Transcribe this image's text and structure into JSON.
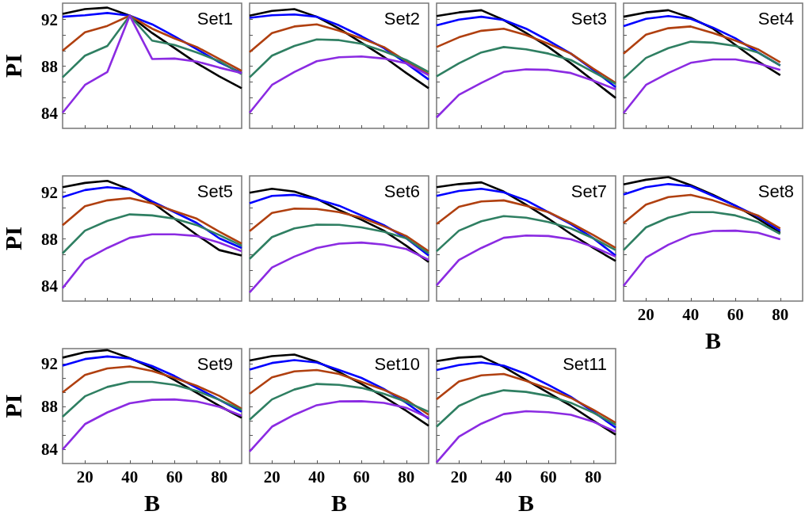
{
  "chart_data": [
    {
      "type": "line",
      "title": "Set1",
      "ylabel": "PI",
      "tick_labels": "y",
      "marker": "none",
      "x": [
        10,
        20,
        30,
        40,
        50,
        60,
        70,
        80,
        90
      ],
      "xlim": [
        10,
        90
      ],
      "xticks": [
        20,
        {
          "value": 30,
          "label": null
        },
        40,
        {
          "value": 50,
          "label": null
        },
        60,
        {
          "value": 70,
          "label": null
        },
        80
      ],
      "ylim": [
        82.7,
        93.4
      ],
      "yticks": [
        84,
        {
          "value": 85.33,
          "label": null
        },
        {
          "value": 86.67,
          "label": null
        },
        88,
        {
          "value": 89.33,
          "label": null
        },
        {
          "value": 90.67,
          "label": null
        },
        92
      ],
      "series": [
        {
          "color": "#000000",
          "values": [
            92.48,
            92.89,
            93.02,
            92.33,
            90.85,
            89.56,
            88.26,
            87.15,
            86.13
          ]
        },
        {
          "color": "#0000ff",
          "values": [
            92.24,
            92.37,
            92.56,
            92.33,
            91.59,
            90.57,
            89.46,
            88.35,
            87.43
          ]
        },
        {
          "color": "#b04010",
          "values": [
            89.33,
            90.91,
            91.46,
            92.33,
            91.22,
            90.39,
            89.65,
            88.63,
            87.61
          ]
        },
        {
          "color": "#2f7f62",
          "values": [
            87.06,
            88.91,
            89.74,
            92.33,
            90.2,
            89.83,
            89.19,
            88.44,
            87.33
          ]
        },
        {
          "color": "#8b2be2",
          "values": [
            84.04,
            86.41,
            87.52,
            92.33,
            88.63,
            88.67,
            88.41,
            87.89,
            87.43
          ]
        }
      ]
    },
    {
      "type": "line",
      "title": "Set2",
      "tick_labels": false,
      "marker": "none",
      "x": [
        10,
        20,
        30,
        40,
        50,
        60,
        70,
        80,
        90
      ],
      "xlim": [
        10,
        90
      ],
      "xticks": [
        20,
        {
          "value": 30,
          "label": null
        },
        40,
        {
          "value": 50,
          "label": null
        },
        60,
        {
          "value": 70,
          "label": null
        },
        80
      ],
      "ylim": [
        82.7,
        93.4
      ],
      "yticks": [
        84,
        {
          "value": 85.33,
          "label": null
        },
        {
          "value": 86.67,
          "label": null
        },
        88,
        {
          "value": 89.33,
          "label": null
        },
        {
          "value": 90.67,
          "label": null
        },
        92
      ],
      "series": [
        {
          "color": "#000000",
          "values": [
            92.33,
            92.74,
            92.89,
            92.24,
            91.22,
            90.02,
            88.81,
            87.43,
            86.13
          ]
        },
        {
          "color": "#0000ff",
          "values": [
            92.15,
            92.37,
            92.43,
            92.24,
            91.5,
            90.57,
            89.56,
            88.26,
            86.87
          ]
        },
        {
          "color": "#b04010",
          "values": [
            89.22,
            90.85,
            91.41,
            91.59,
            91.04,
            90.39,
            89.65,
            88.44,
            87.33
          ]
        },
        {
          "color": "#2f7f62",
          "values": [
            87.06,
            88.91,
            89.74,
            90.3,
            90.24,
            89.93,
            89.28,
            88.54,
            87.52
          ]
        },
        {
          "color": "#8b2be2",
          "values": [
            84.04,
            86.41,
            87.52,
            88.44,
            88.78,
            88.85,
            88.67,
            88.26,
            87.24
          ]
        }
      ]
    },
    {
      "type": "line",
      "title": "Set3",
      "tick_labels": false,
      "marker": "none",
      "x": [
        10,
        20,
        30,
        40,
        50,
        60,
        70,
        80,
        90
      ],
      "xlim": [
        10,
        90
      ],
      "xticks": [
        20,
        {
          "value": 30,
          "label": null
        },
        40,
        {
          "value": 50,
          "label": null
        },
        60,
        {
          "value": 70,
          "label": null
        },
        80
      ],
      "ylim": [
        82.7,
        93.4
      ],
      "yticks": [
        84,
        {
          "value": 85.33,
          "label": null
        },
        {
          "value": 86.67,
          "label": null
        },
        88,
        {
          "value": 89.33,
          "label": null
        },
        {
          "value": 90.67,
          "label": null
        },
        92
      ],
      "series": [
        {
          "color": "#000000",
          "values": [
            92.3,
            92.61,
            92.8,
            91.96,
            90.85,
            89.65,
            88.26,
            86.78,
            85.3
          ]
        },
        {
          "color": "#0000ff",
          "values": [
            91.5,
            92.0,
            92.24,
            91.96,
            91.22,
            90.2,
            89.09,
            87.7,
            86.22
          ]
        },
        {
          "color": "#b04010",
          "values": [
            89.65,
            90.48,
            91.04,
            91.22,
            90.67,
            89.93,
            89.09,
            87.8,
            86.59
          ]
        },
        {
          "color": "#2f7f62",
          "values": [
            87.15,
            88.26,
            89.19,
            89.65,
            89.46,
            89.09,
            88.54,
            87.52,
            86.5
          ]
        },
        {
          "color": "#8b2be2",
          "values": [
            83.63,
            85.57,
            86.59,
            87.52,
            87.74,
            87.7,
            87.43,
            86.78,
            86.04
          ]
        }
      ]
    },
    {
      "type": "line",
      "title": "Set4",
      "tick_labels": false,
      "marker": "none",
      "x": [
        10,
        20,
        30,
        40,
        50,
        60,
        70,
        80
      ],
      "xlim": [
        10,
        90
      ],
      "xticks": [
        20,
        {
          "value": 30,
          "label": null
        },
        40,
        {
          "value": 50,
          "label": null
        },
        60,
        {
          "value": 70,
          "label": null
        },
        80
      ],
      "ylim": [
        82.7,
        93.4
      ],
      "yticks": [
        84,
        {
          "value": 85.33,
          "label": null
        },
        {
          "value": 86.67,
          "label": null
        },
        88,
        {
          "value": 89.33,
          "label": null
        },
        {
          "value": 90.67,
          "label": null
        },
        92
      ],
      "series": [
        {
          "color": "#000000",
          "values": [
            92.24,
            92.61,
            92.8,
            92.15,
            91.22,
            89.83,
            88.44,
            87.24
          ]
        },
        {
          "color": "#0000ff",
          "values": [
            91.44,
            92.06,
            92.3,
            92.06,
            91.31,
            90.39,
            89.19,
            88.07
          ]
        },
        {
          "color": "#b04010",
          "values": [
            89.09,
            90.7,
            91.26,
            91.41,
            90.85,
            90.2,
            89.46,
            88.35
          ]
        },
        {
          "color": "#2f7f62",
          "values": [
            86.96,
            88.72,
            89.56,
            90.11,
            90.02,
            89.74,
            89.19,
            88.07
          ]
        },
        {
          "color": "#8b2be2",
          "values": [
            84.0,
            86.41,
            87.43,
            88.3,
            88.59,
            88.59,
            88.26,
            87.7
          ]
        }
      ]
    },
    {
      "type": "line",
      "title": "Set5",
      "ylabel": "PI",
      "tick_labels": "y",
      "marker": "none",
      "x": [
        10,
        20,
        30,
        40,
        50,
        60,
        70,
        80,
        90
      ],
      "xlim": [
        10,
        90
      ],
      "xticks": [
        20,
        {
          "value": 30,
          "label": null
        },
        40,
        {
          "value": 50,
          "label": null
        },
        60,
        {
          "value": 70,
          "label": null
        },
        80
      ],
      "ylim": [
        82.7,
        93.4
      ],
      "yticks": [
        84,
        {
          "value": 85.33,
          "label": null
        },
        {
          "value": 86.67,
          "label": null
        },
        88,
        {
          "value": 89.33,
          "label": null
        },
        {
          "value": 90.67,
          "label": null
        },
        92
      ],
      "series": [
        {
          "color": "#000000",
          "values": [
            92.43,
            92.8,
            92.98,
            92.24,
            91.13,
            89.74,
            88.35,
            87.06,
            86.59
          ]
        },
        {
          "color": "#0000ff",
          "values": [
            91.59,
            92.19,
            92.43,
            92.24,
            91.22,
            90.3,
            89.37,
            88.07,
            87.24
          ]
        },
        {
          "color": "#b04010",
          "values": [
            89.19,
            90.81,
            91.31,
            91.5,
            91.04,
            90.39,
            89.74,
            88.63,
            87.61
          ]
        },
        {
          "color": "#2f7f62",
          "values": [
            86.78,
            88.72,
            89.56,
            90.11,
            90.02,
            89.74,
            89.19,
            88.35,
            87.43
          ]
        },
        {
          "color": "#8b2be2",
          "values": [
            83.81,
            86.22,
            87.24,
            88.11,
            88.41,
            88.41,
            88.26,
            87.7,
            86.96
          ]
        }
      ]
    },
    {
      "type": "line",
      "title": "Set6",
      "tick_labels": false,
      "marker": "none",
      "x": [
        10,
        20,
        30,
        40,
        50,
        60,
        70,
        80,
        90
      ],
      "xlim": [
        10,
        90
      ],
      "xticks": [
        20,
        {
          "value": 30,
          "label": null
        },
        40,
        {
          "value": 50,
          "label": null
        },
        60,
        {
          "value": 70,
          "label": null
        },
        80
      ],
      "ylim": [
        82.7,
        93.4
      ],
      "yticks": [
        84,
        {
          "value": 85.33,
          "label": null
        },
        {
          "value": 86.67,
          "label": null
        },
        88,
        {
          "value": 89.33,
          "label": null
        },
        {
          "value": 90.67,
          "label": null
        },
        92
      ],
      "series": [
        {
          "color": "#000000",
          "values": [
            91.96,
            92.3,
            92.06,
            91.44,
            90.48,
            89.65,
            88.72,
            87.43,
            86.04
          ]
        },
        {
          "color": "#0000ff",
          "values": [
            91.07,
            91.69,
            91.78,
            91.41,
            90.85,
            90.02,
            89.19,
            88.07,
            86.59
          ]
        },
        {
          "color": "#b04010",
          "values": [
            88.67,
            90.24,
            90.61,
            90.57,
            90.3,
            89.83,
            89.09,
            88.26,
            86.96
          ]
        },
        {
          "color": "#2f7f62",
          "values": [
            86.31,
            88.17,
            88.91,
            89.24,
            89.22,
            89.0,
            88.63,
            88.07,
            86.78
          ]
        },
        {
          "color": "#8b2be2",
          "values": [
            83.44,
            85.57,
            86.5,
            87.24,
            87.61,
            87.7,
            87.52,
            87.15,
            86.22
          ]
        }
      ]
    },
    {
      "type": "line",
      "title": "Set7",
      "tick_labels": false,
      "marker": "none",
      "x": [
        10,
        20,
        30,
        40,
        50,
        60,
        70,
        80,
        90
      ],
      "xlim": [
        10,
        90
      ],
      "xticks": [
        20,
        {
          "value": 30,
          "label": null
        },
        40,
        {
          "value": 50,
          "label": null
        },
        60,
        {
          "value": 70,
          "label": null
        },
        80
      ],
      "ylim": [
        82.7,
        93.4
      ],
      "yticks": [
        84,
        {
          "value": 85.33,
          "label": null
        },
        {
          "value": 86.67,
          "label": null
        },
        88,
        {
          "value": 89.33,
          "label": null
        },
        {
          "value": 90.67,
          "label": null
        },
        92
      ],
      "series": [
        {
          "color": "#000000",
          "values": [
            92.43,
            92.7,
            92.85,
            92.06,
            90.94,
            89.74,
            88.44,
            87.24,
            86.13
          ]
        },
        {
          "color": "#0000ff",
          "values": [
            91.69,
            92.11,
            92.3,
            92.0,
            91.31,
            90.3,
            89.28,
            88.07,
            86.59
          ]
        },
        {
          "color": "#b04010",
          "values": [
            89.28,
            90.76,
            91.22,
            91.31,
            90.85,
            90.3,
            89.37,
            88.35,
            87.24
          ]
        },
        {
          "color": "#2f7f62",
          "values": [
            86.96,
            88.72,
            89.52,
            89.96,
            89.83,
            89.46,
            88.91,
            88.07,
            87.06
          ]
        },
        {
          "color": "#8b2be2",
          "values": [
            84.04,
            86.22,
            87.24,
            88.11,
            88.3,
            88.26,
            87.98,
            87.33,
            86.5
          ]
        }
      ]
    },
    {
      "type": "line",
      "title": "Set8",
      "xlabel": "B",
      "tick_labels": "x",
      "marker": "none",
      "x": [
        10,
        20,
        30,
        40,
        50,
        60,
        70,
        80
      ],
      "xlim": [
        10,
        90
      ],
      "xticks": [
        20,
        {
          "value": 30,
          "label": null
        },
        40,
        {
          "value": 50,
          "label": null
        },
        60,
        {
          "value": 70,
          "label": null
        },
        80
      ],
      "ylim": [
        82.7,
        93.4
      ],
      "yticks": [
        84,
        {
          "value": 85.33,
          "label": null
        },
        {
          "value": 86.67,
          "label": null
        },
        88,
        {
          "value": 89.33,
          "label": null
        },
        {
          "value": 90.67,
          "label": null
        },
        92
      ],
      "series": [
        {
          "color": "#000000",
          "values": [
            92.67,
            93.07,
            93.3,
            92.61,
            91.78,
            90.85,
            89.74,
            88.54
          ]
        },
        {
          "color": "#0000ff",
          "values": [
            91.81,
            92.43,
            92.7,
            92.52,
            91.69,
            90.85,
            89.93,
            88.72
          ]
        },
        {
          "color": "#b04010",
          "values": [
            89.37,
            90.94,
            91.59,
            91.78,
            91.31,
            90.67,
            90.02,
            88.91
          ]
        },
        {
          "color": "#2f7f62",
          "values": [
            87.06,
            89.0,
            89.83,
            90.3,
            90.3,
            90.02,
            89.46,
            88.44
          ]
        },
        {
          "color": "#8b2be2",
          "values": [
            84.0,
            86.41,
            87.52,
            88.35,
            88.69,
            88.72,
            88.54,
            87.98
          ]
        }
      ]
    },
    {
      "type": "line",
      "title": "Set9",
      "xlabel": "B",
      "ylabel": "PI",
      "marker": "none",
      "x": [
        10,
        20,
        30,
        40,
        50,
        60,
        70,
        80,
        90
      ],
      "xlim": [
        10,
        90
      ],
      "xticks": [
        20,
        {
          "value": 30,
          "label": null
        },
        40,
        {
          "value": 50,
          "label": null
        },
        60,
        {
          "value": 70,
          "label": null
        },
        80
      ],
      "ylim": [
        82.7,
        93.4
      ],
      "yticks": [
        84,
        {
          "value": 85.33,
          "label": null
        },
        {
          "value": 86.67,
          "label": null
        },
        88,
        {
          "value": 89.33,
          "label": null
        },
        {
          "value": 90.67,
          "label": null
        },
        92
      ],
      "series": [
        {
          "color": "#000000",
          "values": [
            92.56,
            93.07,
            93.26,
            92.52,
            91.59,
            90.48,
            89.28,
            88.07,
            86.96
          ]
        },
        {
          "color": "#0000ff",
          "values": [
            91.81,
            92.43,
            92.67,
            92.48,
            91.78,
            90.85,
            89.74,
            88.63,
            87.52
          ]
        },
        {
          "color": "#b04010",
          "values": [
            89.33,
            90.94,
            91.56,
            91.74,
            91.31,
            90.67,
            89.93,
            89.0,
            87.8
          ]
        },
        {
          "color": "#2f7f62",
          "values": [
            87.06,
            88.96,
            89.83,
            90.3,
            90.3,
            90.02,
            89.46,
            88.63,
            87.7
          ]
        },
        {
          "color": "#8b2be2",
          "values": [
            84.0,
            86.37,
            87.46,
            88.31,
            88.63,
            88.67,
            88.48,
            87.98,
            87.15
          ]
        }
      ]
    },
    {
      "type": "line",
      "title": "Set10",
      "xlabel": "B",
      "tick_labels": "x",
      "marker": "none",
      "x": [
        10,
        20,
        30,
        40,
        50,
        60,
        70,
        80,
        90
      ],
      "xlim": [
        10,
        90
      ],
      "xticks": [
        20,
        {
          "value": 30,
          "label": null
        },
        40,
        {
          "value": 50,
          "label": null
        },
        60,
        {
          "value": 70,
          "label": null
        },
        80
      ],
      "ylim": [
        82.7,
        93.4
      ],
      "yticks": [
        84,
        {
          "value": 85.33,
          "label": null
        },
        {
          "value": 86.67,
          "label": null
        },
        88,
        {
          "value": 89.33,
          "label": null
        },
        {
          "value": 90.67,
          "label": null
        },
        92
      ],
      "series": [
        {
          "color": "#000000",
          "values": [
            92.3,
            92.7,
            92.85,
            92.19,
            91.22,
            90.11,
            88.91,
            87.61,
            86.22
          ]
        },
        {
          "color": "#0000ff",
          "values": [
            91.44,
            92.06,
            92.33,
            92.11,
            91.41,
            90.67,
            89.65,
            88.35,
            86.87
          ]
        },
        {
          "color": "#b04010",
          "values": [
            89.19,
            90.72,
            91.28,
            91.41,
            91.04,
            90.3,
            89.56,
            88.63,
            87.24
          ]
        },
        {
          "color": "#2f7f62",
          "values": [
            86.78,
            88.67,
            89.59,
            90.11,
            90.02,
            89.74,
            89.19,
            88.44,
            87.52
          ]
        },
        {
          "color": "#8b2be2",
          "values": [
            83.81,
            86.13,
            87.24,
            88.13,
            88.48,
            88.5,
            88.35,
            87.89,
            86.96
          ]
        }
      ]
    },
    {
      "type": "line",
      "title": "Set11",
      "xlabel": "B",
      "tick_labels": "x",
      "marker": "none",
      "x": [
        10,
        20,
        30,
        40,
        50,
        60,
        70,
        80,
        90
      ],
      "xlim": [
        10,
        90
      ],
      "xticks": [
        20,
        {
          "value": 30,
          "label": null
        },
        40,
        {
          "value": 50,
          "label": null
        },
        60,
        {
          "value": 70,
          "label": null
        },
        80
      ],
      "ylim": [
        82.7,
        93.4
      ],
      "yticks": [
        84,
        {
          "value": 85.33,
          "label": null
        },
        {
          "value": 86.67,
          "label": null
        },
        88,
        {
          "value": 89.33,
          "label": null
        },
        {
          "value": 90.67,
          "label": null
        },
        92
      ],
      "series": [
        {
          "color": "#000000",
          "values": [
            92.24,
            92.56,
            92.67,
            91.69,
            90.48,
            89.28,
            88.07,
            86.69,
            85.39
          ]
        },
        {
          "color": "#0000ff",
          "values": [
            91.41,
            91.87,
            92.11,
            91.81,
            91.04,
            90.02,
            88.91,
            87.52,
            86.04
          ]
        },
        {
          "color": "#b04010",
          "values": [
            88.67,
            90.33,
            90.91,
            91.04,
            90.39,
            89.65,
            88.81,
            87.7,
            86.5
          ]
        },
        {
          "color": "#2f7f62",
          "values": [
            86.13,
            88.07,
            89.0,
            89.52,
            89.37,
            89.0,
            88.35,
            87.43,
            86.31
          ]
        },
        {
          "color": "#8b2be2",
          "values": [
            82.8,
            85.2,
            86.41,
            87.3,
            87.57,
            87.48,
            87.24,
            86.59,
            85.67
          ]
        }
      ]
    }
  ]
}
